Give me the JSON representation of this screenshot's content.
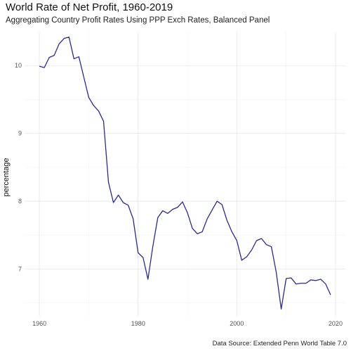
{
  "chart_data": {
    "type": "line",
    "title": "World Rate of Net Profit, 1960-2019",
    "subtitle": "Aggregating Country Profit Rates Using PPP Exch Rates, Balanced Panel",
    "caption": "Data Source: Extended Penn World Table 7.0",
    "xlabel": "",
    "ylabel": "percentage",
    "xlim": [
      1957,
      2022
    ],
    "ylim": [
      6.3,
      10.5
    ],
    "x_ticks": [
      1960,
      1980,
      2000,
      2020
    ],
    "y_ticks": [
      7,
      8,
      9,
      10
    ],
    "grid": true,
    "line_color": "#2b2b8c",
    "series": [
      {
        "name": "",
        "x": [
          1960,
          1961,
          1962,
          1963,
          1964,
          1965,
          1966,
          1967,
          1968,
          1969,
          1970,
          1971,
          1972,
          1973,
          1974,
          1975,
          1976,
          1977,
          1978,
          1979,
          1980,
          1981,
          1982,
          1983,
          1984,
          1985,
          1986,
          1987,
          1988,
          1989,
          1990,
          1991,
          1992,
          1993,
          1994,
          1995,
          1996,
          1997,
          1998,
          1999,
          2000,
          2001,
          2002,
          2003,
          2004,
          2005,
          2006,
          2007,
          2008,
          2009,
          2010,
          2011,
          2012,
          2013,
          2014,
          2015,
          2016,
          2017,
          2018,
          2019
        ],
        "y": [
          9.99,
          9.97,
          10.12,
          10.15,
          10.32,
          10.4,
          10.42,
          10.1,
          10.13,
          9.83,
          9.53,
          9.41,
          9.33,
          9.18,
          8.28,
          7.98,
          8.09,
          7.98,
          7.94,
          7.74,
          7.24,
          7.17,
          6.85,
          7.34,
          7.76,
          7.86,
          7.82,
          7.88,
          7.91,
          7.99,
          7.83,
          7.6,
          7.52,
          7.55,
          7.74,
          7.87,
          8.0,
          7.95,
          7.72,
          7.55,
          7.42,
          7.13,
          7.18,
          7.28,
          7.42,
          7.45,
          7.36,
          7.33,
          6.95,
          6.41,
          6.86,
          6.87,
          6.78,
          6.79,
          6.79,
          6.84,
          6.83,
          6.85,
          6.78,
          6.62
        ]
      }
    ]
  }
}
